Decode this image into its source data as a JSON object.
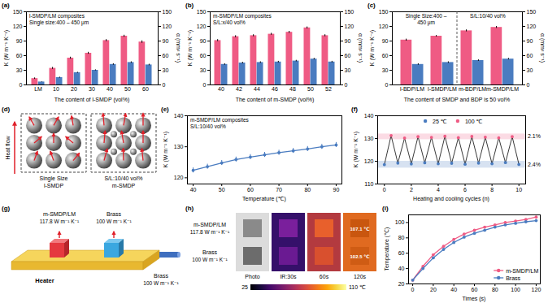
{
  "chart_data": [
    {
      "panel": "(a)",
      "type": "bar",
      "annotations": [
        "l-SMDP/LM composites",
        "Single size:400 – 450 μm"
      ],
      "categories": [
        "LM",
        "10",
        "20",
        "30",
        "40",
        "50",
        "60"
      ],
      "series": [
        {
          "color": "#ef5b84",
          "values": [
            13,
            34,
            55,
            65,
            91,
            100,
            88
          ],
          "errors": [
            1.5,
            2,
            2,
            2,
            2,
            2,
            2.5
          ]
        },
        {
          "color": "#4a7cc0",
          "axis": "y2",
          "values": [
            6,
            15,
            25,
            30,
            42,
            46,
            41
          ],
          "errors": [
            0.5,
            1,
            1,
            1,
            1.5,
            1.5,
            1.5
          ]
        }
      ],
      "xlabel": "The content of l-SMDP (vol%)",
      "ylabel": "K (W m⁻¹ K⁻¹)",
      "y2label": "α (mm² s⁻¹)",
      "ylim": [
        0,
        150
      ],
      "yticks": [
        0,
        30,
        60,
        90,
        120,
        150
      ],
      "y2lim": [
        0,
        150
      ],
      "y2ticks": [
        0,
        30,
        60,
        90,
        120,
        150
      ]
    },
    {
      "panel": "(b)",
      "type": "bar",
      "annotations": [
        "m-SMDP/LM composites",
        "S/L:x/40 vol%"
      ],
      "categories": [
        "40",
        "42",
        "44",
        "46",
        "48",
        "50",
        "52"
      ],
      "series": [
        {
          "color": "#ef5b84",
          "values": [
            91,
            99,
            101,
            104,
            108,
            117,
            101
          ],
          "errors": [
            2,
            2,
            2,
            2,
            2,
            2,
            2
          ]
        },
        {
          "color": "#4a7cc0",
          "axis": "y2",
          "values": [
            42,
            45,
            46,
            47,
            49,
            53,
            47
          ],
          "errors": [
            1.5,
            1.5,
            1.5,
            1.5,
            1.5,
            1.5,
            1.5
          ]
        }
      ],
      "xlabel": "The content of m-SMDP (vol%)",
      "ylabel": "K (W m⁻¹ K⁻¹)",
      "y2label": "α (mm² s⁻¹)",
      "ylim": [
        0,
        150
      ],
      "yticks": [
        0,
        30,
        60,
        90,
        120,
        150
      ],
      "y2lim": [
        0,
        150
      ],
      "y2ticks": [
        0,
        30,
        60,
        90,
        120,
        150
      ]
    },
    {
      "panel": "(c)",
      "type": "bar",
      "annotations": [
        {
          "text": "Single Size:400 – 450 μm",
          "categories": [
            "l-BDP/LM",
            "l-SMDP/LM"
          ]
        },
        {
          "text": "S/L:10/40 vol%",
          "categories": [
            "m-BDP/LM",
            "m-SMDP/LM"
          ]
        }
      ],
      "categories": [
        "l-BDP/LM",
        "l-SMDP/LM",
        "m-BDP/LM",
        "m-SMDP/LM"
      ],
      "series": [
        {
          "color": "#ef5b84",
          "values": [
            92,
            100,
            111,
            118
          ],
          "errors": [
            2,
            1.5,
            2,
            2
          ]
        },
        {
          "color": "#4a7cc0",
          "axis": "y2",
          "values": [
            42,
            46,
            50,
            53
          ],
          "errors": [
            1.5,
            1.5,
            1.5,
            1.5
          ]
        }
      ],
      "xlabel": "The content of SMDP and BDP is 50 vol%",
      "ylabel": "K (W m⁻¹ K⁻¹)",
      "y2label": "α (mm² s⁻¹)",
      "ylim": [
        0,
        150
      ],
      "yticks": [
        0,
        30,
        60,
        90,
        120,
        150
      ],
      "y2lim": [
        0,
        150
      ],
      "y2ticks": [
        0,
        30,
        60,
        90,
        120,
        150
      ]
    },
    {
      "panel": "(e)",
      "type": "line",
      "annotations": [
        "m-SMDP/LM composites",
        "S/L:10/40 vol%"
      ],
      "series": [
        {
          "color": "#4a7cc0",
          "marker": "circle",
          "x": [
            40,
            45,
            50,
            55,
            60,
            65,
            70,
            75,
            80,
            85,
            90
          ],
          "values": [
            122.4,
            123.6,
            124.8,
            125.9,
            126.7,
            127.4,
            128.1,
            128.7,
            129.3,
            130,
            130.6
          ],
          "errors": [
            0.8,
            0.8,
            0.8,
            0.8,
            0.8,
            0.8,
            0.8,
            0.8,
            0.8,
            0.8,
            0.8
          ]
        }
      ],
      "xlabel": "Temperature (℃)",
      "ylabel": "K (W m⁻¹ K⁻¹)",
      "xlim": [
        38,
        92
      ],
      "xticks": [
        40,
        50,
        60,
        70,
        80,
        90
      ],
      "ylim": [
        118,
        140
      ],
      "yticks": [
        120,
        130,
        140
      ]
    },
    {
      "panel": "(f)",
      "type": "line",
      "color": "#222222",
      "legend": "upper center",
      "series": [
        {
          "name": "25 ℃",
          "type": "scatter",
          "marker": "circle",
          "color": "#4a7cc0",
          "x": [
            0,
            1,
            2,
            3,
            4,
            5,
            6,
            7,
            8,
            9,
            10
          ],
          "values": [
            118.5,
            119.2,
            118.8,
            119.3,
            118.9,
            119.1,
            118.7,
            119.2,
            118.9,
            119.4,
            118.6
          ]
        },
        {
          "name": "100 ℃",
          "type": "scatter",
          "marker": "circle",
          "color": "#ef5b84",
          "x": [
            0.5,
            1.5,
            2.5,
            3.5,
            4.5,
            5.5,
            6.5,
            7.5,
            8.5,
            9.5
          ],
          "values": [
            131.3,
            130.2,
            130.8,
            130.5,
            131,
            130.4,
            130.9,
            130.6,
            130.3,
            130.8
          ]
        }
      ],
      "bands": [
        {
          "series": "100 ℃",
          "range": [
            129.5,
            132
          ],
          "label": "2.1%"
        },
        {
          "series": "25 ℃",
          "range": [
            117,
            120
          ],
          "label": "2.4%"
        }
      ],
      "xlabel": "Heating and cooling cycles (n)",
      "ylabel": "K (W m⁻¹ K⁻¹)",
      "xlim": [
        -0.5,
        10.5
      ],
      "xticks": [
        0,
        2,
        4,
        6,
        8,
        10
      ],
      "ylim": [
        110,
        140
      ],
      "yticks": [
        110,
        120,
        130,
        140
      ]
    },
    {
      "panel": "(i)",
      "type": "line",
      "legend": "lower right",
      "series": [
        {
          "name": "m-SMDP/LM",
          "marker": "circle",
          "color": "#ef5b84",
          "x": [
            0,
            10,
            20,
            30,
            40,
            50,
            60,
            70,
            80,
            90,
            100,
            110,
            120
          ],
          "values": [
            25,
            43,
            58,
            69,
            78,
            85,
            90,
            94,
            97,
            100,
            102,
            104,
            107.1
          ]
        },
        {
          "name": "Brass",
          "marker": "circle",
          "color": "#4a7cc0",
          "x": [
            0,
            10,
            20,
            30,
            40,
            50,
            60,
            70,
            80,
            90,
            100,
            110,
            120
          ],
          "values": [
            25,
            40,
            54,
            65,
            74,
            81,
            86,
            90,
            94,
            97,
            99,
            101,
            102.5
          ]
        }
      ],
      "xlabel": "Times (s)",
      "ylabel": "Temperature (℃)",
      "xlim": [
        -4,
        124
      ],
      "xticks": [
        0,
        20,
        40,
        60,
        80,
        100,
        120
      ],
      "ylim": [
        20,
        110
      ],
      "yticks": [
        20,
        40,
        60,
        80,
        100
      ]
    }
  ],
  "diagrams": {
    "d": {
      "letter": "(d)",
      "heat_flow": "Heat flow",
      "boxes": [
        [
          "Single Size",
          "l-SMDP"
        ],
        [
          "S/L:10/40 vol%",
          "m-SMDP"
        ]
      ]
    },
    "g": {
      "letter": "(g)",
      "samples": [
        {
          "name": "m-SMDP/LM",
          "k": "117.8 W m⁻¹ K⁻¹"
        },
        {
          "name": "Brass",
          "k": "100 W m⁻¹ K⁻¹"
        }
      ],
      "heater": "Heater",
      "rod": {
        "name": "Brass",
        "k": "100 W m⁻¹ K⁻¹"
      }
    },
    "h": {
      "letter": "(h)",
      "rows": [
        {
          "name": "m-SMDP/LM",
          "k": "117.8 W m⁻¹ K⁻¹"
        },
        {
          "name": "Brass",
          "k": "100 W m⁻¹ K⁻¹"
        }
      ],
      "columns": [
        "Photo",
        "IR:30s",
        "60s",
        "120s"
      ],
      "spots": [
        "107.1 ℃",
        "102.5 ℃"
      ],
      "colorbar": {
        "range": [
          25,
          110
        ],
        "ticks": [
          25,
          {
            "value": 110,
            "label": "110 ℃"
          }
        ]
      }
    }
  }
}
